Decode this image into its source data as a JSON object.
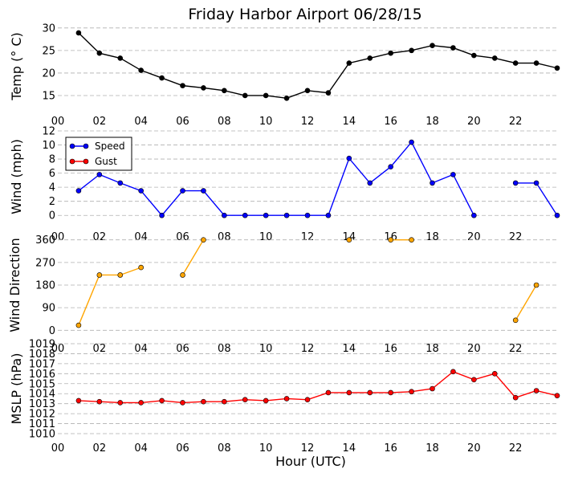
{
  "title": "Friday Harbor Airport 06/28/15",
  "xlabel": "Hour (UTC)",
  "x_tick_labels": [
    "00",
    "02",
    "04",
    "06",
    "08",
    "10",
    "12",
    "14",
    "16",
    "18",
    "20",
    "22"
  ],
  "legend": {
    "speed": "Speed",
    "gust": "Gust"
  },
  "colors": {
    "temp": "#000000",
    "speed": "#0000ff",
    "gust": "#ff0000",
    "direction": "#ffa500",
    "mslp": "#ff0000",
    "grid": "#b0b0b0"
  },
  "chart_data": [
    {
      "type": "line",
      "ylabel": "Temp ($^\\circ$C)",
      "ylabel_display": "Temp (° C)",
      "xlim": [
        0,
        24
      ],
      "ylim": [
        12.5,
        30.5
      ],
      "yticks": [
        15,
        20,
        25,
        30
      ],
      "grid": true,
      "series": [
        {
          "x": [
            1,
            2,
            3,
            4,
            5,
            6,
            7,
            8,
            9,
            10,
            11,
            12,
            13,
            14,
            15,
            16,
            17,
            18,
            19,
            20,
            21,
            22,
            23,
            24
          ],
          "values": [
            28.9,
            24.4,
            23.3,
            20.6,
            18.9,
            17.2,
            16.7,
            16.1,
            15.0,
            15.0,
            14.4,
            16.1,
            15.6,
            22.2,
            23.3,
            24.4,
            25.0,
            26.1,
            25.6,
            23.9,
            23.3,
            22.2,
            22.2,
            21.1
          ]
        }
      ]
    },
    {
      "type": "line",
      "ylabel": "Wind (mph)",
      "xlim": [
        0,
        24
      ],
      "ylim": [
        -1,
        12
      ],
      "yticks": [
        0,
        2,
        4,
        6,
        8,
        10,
        12
      ],
      "grid": true,
      "legend_position": "top-left",
      "series": [
        {
          "name": "Speed",
          "x": [
            1,
            2,
            3,
            4,
            5,
            6,
            7,
            8,
            9,
            10,
            11,
            12,
            13,
            14,
            15,
            16,
            17,
            18,
            19,
            20,
            21,
            22,
            23,
            24
          ],
          "values": [
            3.5,
            5.8,
            4.6,
            3.5,
            0,
            3.5,
            3.5,
            0,
            0,
            0,
            0,
            0,
            0,
            8.1,
            4.6,
            6.9,
            10.4,
            4.6,
            5.8,
            0,
            null,
            4.6,
            4.6,
            0
          ]
        },
        {
          "name": "Gust",
          "x": [
            1,
            2,
            3,
            4,
            5,
            6,
            7,
            8,
            9,
            10,
            11,
            12,
            13,
            14,
            15,
            16,
            17,
            18,
            19,
            20,
            21,
            22,
            23,
            24
          ],
          "values": [
            null,
            null,
            null,
            null,
            null,
            null,
            null,
            null,
            null,
            null,
            null,
            null,
            null,
            null,
            null,
            null,
            null,
            null,
            null,
            null,
            null,
            null,
            null,
            null
          ]
        }
      ]
    },
    {
      "type": "line",
      "ylabel": "Wind Direction",
      "xlim": [
        0,
        24
      ],
      "ylim": [
        -15,
        375
      ],
      "yticks": [
        0,
        90,
        180,
        270,
        360
      ],
      "grid": true,
      "series": [
        {
          "x": [
            1,
            2,
            3,
            4,
            5,
            6,
            7,
            8,
            9,
            10,
            11,
            12,
            13,
            14,
            15,
            16,
            17,
            18,
            19,
            20,
            21,
            22,
            23,
            24
          ],
          "values": [
            20,
            220,
            220,
            250,
            null,
            220,
            360,
            null,
            null,
            null,
            null,
            null,
            null,
            360,
            null,
            360,
            360,
            null,
            null,
            null,
            null,
            40,
            180,
            null
          ]
        }
      ]
    },
    {
      "type": "line",
      "ylabel": "MSLP (hPa)",
      "xlim": [
        0,
        24
      ],
      "ylim": [
        1010,
        1019
      ],
      "yticks": [
        1010,
        1011,
        1012,
        1013,
        1014,
        1015,
        1016,
        1017,
        1018,
        1019
      ],
      "grid": true,
      "series": [
        {
          "x": [
            1,
            2,
            3,
            4,
            5,
            6,
            7,
            8,
            9,
            10,
            11,
            12,
            13,
            14,
            15,
            16,
            17,
            18,
            19,
            20,
            21,
            22,
            23,
            24
          ],
          "values": [
            1013.3,
            1013.2,
            1013.1,
            1013.1,
            1013.3,
            1013.1,
            1013.2,
            1013.2,
            1013.4,
            1013.3,
            1013.5,
            1013.4,
            1014.1,
            1014.1,
            1014.1,
            1014.1,
            1014.2,
            1014.5,
            1016.2,
            1015.4,
            1016.0,
            1013.6,
            1014.3,
            1013.8
          ]
        }
      ]
    }
  ]
}
